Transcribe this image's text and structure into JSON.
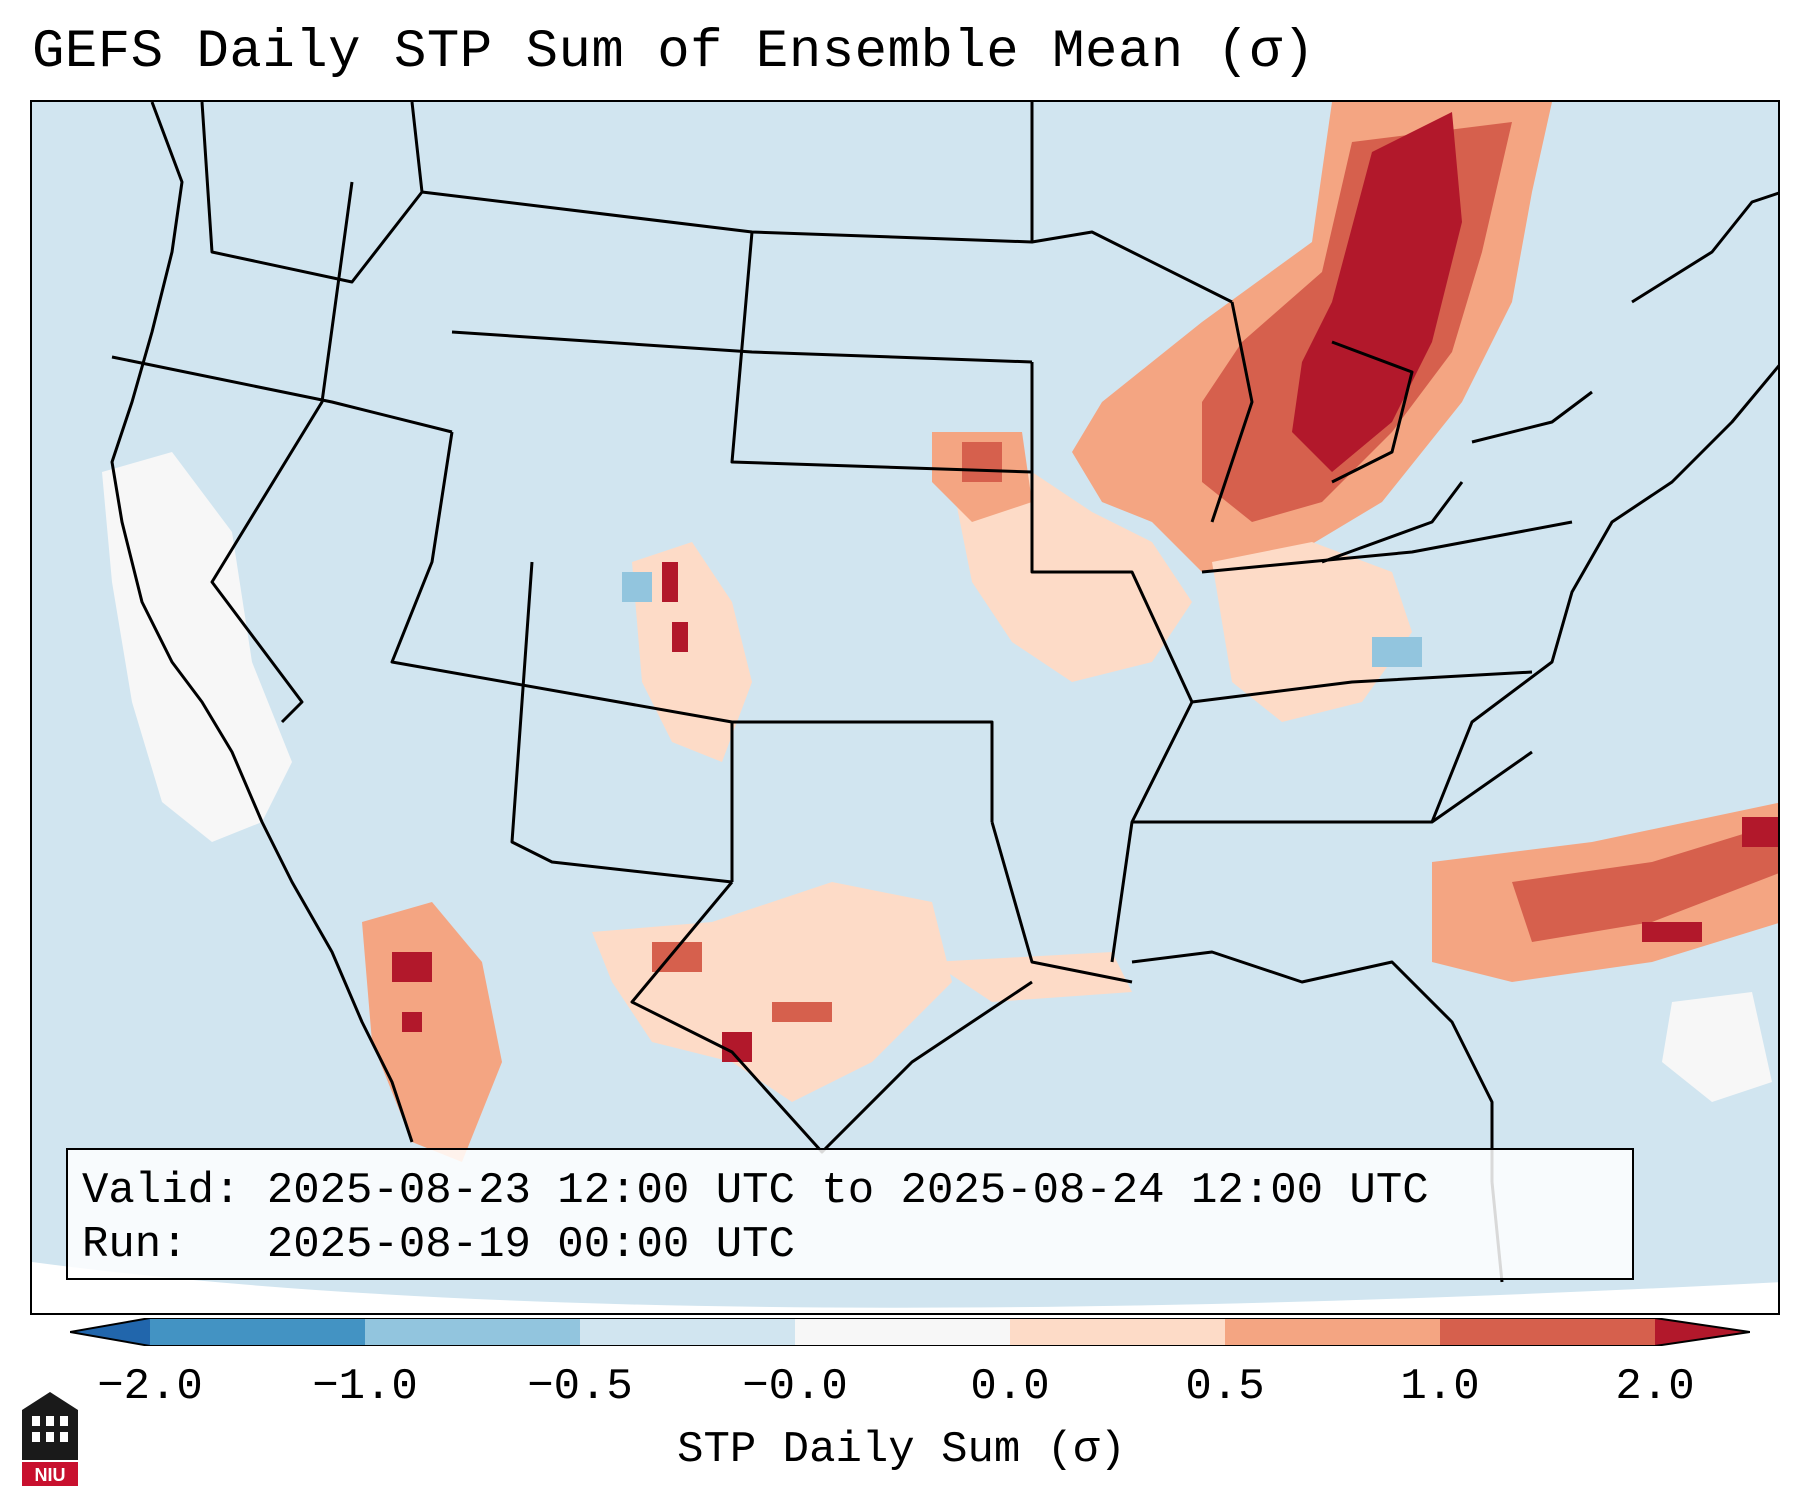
{
  "title": "GEFS Daily STP Sum of Ensemble Mean (σ)",
  "info": {
    "valid_label": "Valid:",
    "valid_value": "2025-08-23 12:00 UTC to 2025-08-24 12:00 UTC",
    "run_label": "Run:",
    "run_value": "2025-08-19 00:00 UTC"
  },
  "colorbar": {
    "label": "STP Daily Sum (σ)",
    "ticks": [
      "−2.0",
      "−1.0",
      "−0.5",
      "−0.0",
      "0.0",
      "0.5",
      "1.0",
      "2.0"
    ],
    "colors": {
      "extend_low": "#2166ac",
      "bin1": "#4393c3",
      "bin2": "#92c5de",
      "bin3": "#d1e5f0",
      "bin4": "#f7f7f7",
      "bin5": "#fddbc7",
      "bin6": "#f4a582",
      "bin7": "#d6604d",
      "bin8": "#b2182b"
    }
  },
  "map_colors": {
    "ocean_land": "#d1e5f0",
    "border": "#000000"
  },
  "logo": {
    "text": "NIU",
    "color": "#c8102e"
  }
}
